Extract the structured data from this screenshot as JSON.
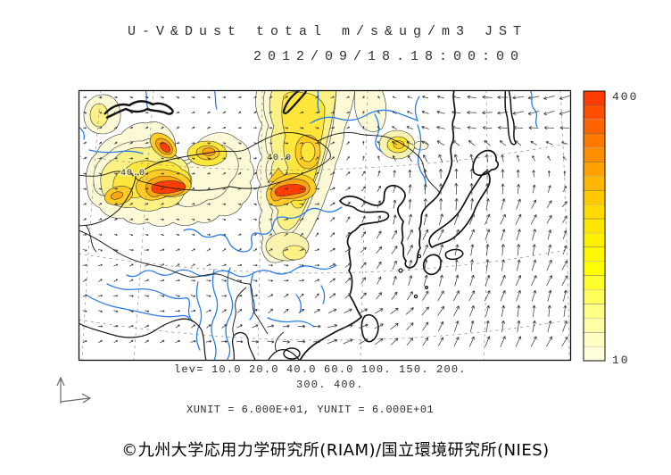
{
  "header": {
    "title_line1": "U-V&Dust total m/s&ug/m3 JST",
    "title_line2": "2012/09/18.18:00:00"
  },
  "footer": {
    "lev_line1": "lev= 10.0 20.0 40.0 60.0 100. 150. 200.",
    "lev_line2": "300. 400.",
    "units_line": "XUNIT = 6.000E+01, YUNIT = 6.000E+01",
    "credit": "©九州大学応用力学研究所(RIAM)/国立環境研究所(NIES)"
  },
  "colorbar": {
    "top_label": "400",
    "bottom_label": "10"
  },
  "chart_data": {
    "type": "heatmap",
    "subtype": "vector-contour-map",
    "title": "U-V&Dust total m/s&ug/m3 JST",
    "timestamp": "2012/09/18.18:00:00",
    "timezone": "JST",
    "variables": {
      "vectors": "U-V wind (m/s)",
      "shading": "Dust total (ug/m3)"
    },
    "region_depicted": "East Asia",
    "contour_levels": [
      10.0,
      20.0,
      40.0,
      60.0,
      100,
      150,
      200,
      300,
      400
    ],
    "contour_label_text": "40.0",
    "xunit": "6.000E+01",
    "yunit": "6.000E+01",
    "colorbar_range": [
      10,
      400
    ],
    "colorbar_colors_top_to_bottom": [
      "#FF3A00",
      "#FF4E00",
      "#FF6300",
      "#FF7800",
      "#FF8D00",
      "#FFA200",
      "#FFB600",
      "#FFC900",
      "#FFD900",
      "#FFE600",
      "#FFF000",
      "#FFF800",
      "#FFFF00",
      "#FFFF2E",
      "#FFFF5C",
      "#FFFF85",
      "#FFFFA8",
      "#FFFFC4",
      "#FFFFDB"
    ],
    "contour_fill_colors_low_to_high": [
      "#FBF9D6",
      "#F8F3AE",
      "#FBF185",
      "#FFEE5A",
      "#FFE63A",
      "#FFCB24",
      "#FFA312",
      "#FF7A08",
      "#FF3D04"
    ],
    "dust_plume_cores_exceeding_300": 3,
    "wind": {
      "grid_dx": 17.35,
      "grid_dy": 17.1,
      "color": "#3b3b3b",
      "max_len": 13
    },
    "grid_on": true,
    "legend_position": "right"
  }
}
